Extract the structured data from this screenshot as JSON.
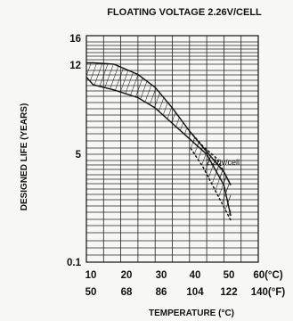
{
  "chart_data": {
    "type": "area",
    "title": "FLOATING VOLTAGE 2.26V/CELL",
    "xlabel": "TEMPERATURE (°C)",
    "ylabel": "DESIGNED LIFE (YEARS)",
    "x_ticks_c": [
      "10",
      "20",
      "30",
      "40",
      "50",
      "60(°C)"
    ],
    "x_ticks_f": [
      "50",
      "68",
      "86",
      "104",
      "122",
      "140(°F)"
    ],
    "y_ticks": [
      "0.1",
      "5",
      "12",
      "16"
    ],
    "xlim": [
      10,
      60
    ],
    "grid": true,
    "annotation": "2.30v/cell",
    "series": [
      {
        "x": [
          10,
          12,
          18,
          25,
          30,
          35,
          40,
          45,
          50,
          52
        ],
        "y_upper": [
          12.2,
          12.2,
          12.0,
          11.2,
          10.2,
          8.6,
          6.8,
          5.2,
          4.2,
          3.6
        ],
        "y_lower": [
          11.0,
          10.4,
          10.0,
          9.4,
          8.6,
          7.4,
          6.2,
          5.0,
          3.6,
          2.2
        ]
      },
      {
        "x": [
          40,
          44,
          48,
          52
        ],
        "y_upper": [
          6.8,
          5.6,
          4.8,
          3.6
        ],
        "y_lower": [
          5.6,
          4.4,
          3.2,
          2.0
        ]
      }
    ]
  }
}
